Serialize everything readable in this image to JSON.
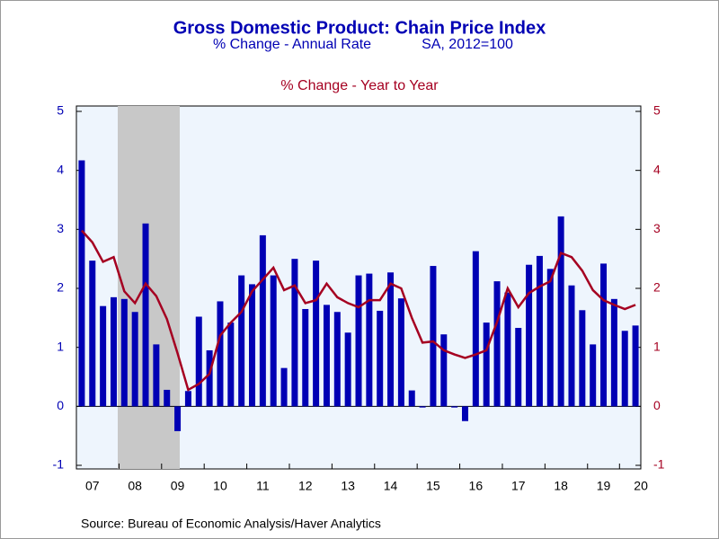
{
  "chart_data": {
    "type": "bar_line",
    "title": "Gross Domestic Product: Chain Price Index",
    "subtitle": "SA, 2012=100",
    "source": "Source:  Bureau of Economic Analysis/Haver Analytics",
    "categories": [
      null,
      "07",
      null,
      null,
      null,
      "08",
      null,
      null,
      null,
      "09",
      null,
      null,
      null,
      "10",
      null,
      null,
      null,
      "11",
      null,
      null,
      null,
      "12",
      null,
      null,
      null,
      "13",
      null,
      null,
      null,
      "14",
      null,
      null,
      null,
      "15",
      null,
      null,
      null,
      "16",
      null,
      null,
      null,
      "17",
      null,
      null,
      null,
      "18",
      null,
      null,
      null,
      "19",
      null,
      null,
      "20"
    ],
    "series": [
      {
        "name": "% Change - Annual Rate",
        "color": "#0000b4",
        "axis": "y",
        "values": [
          4.17,
          2.47,
          1.7,
          1.85,
          1.82,
          1.6,
          3.1,
          1.05,
          0.28,
          -0.42,
          0.26,
          1.52,
          0.95,
          1.78,
          1.42,
          2.22,
          2.07,
          2.9,
          2.22,
          0.65,
          2.5,
          1.65,
          2.47,
          1.72,
          1.6,
          1.25,
          2.22,
          2.25,
          1.62,
          2.27,
          1.83,
          0.27,
          -0.02,
          2.38,
          1.22,
          -0.02,
          -0.25,
          2.63,
          1.42,
          2.12,
          1.93,
          1.33,
          2.4,
          2.55,
          2.33,
          3.22,
          2.05,
          1.63,
          1.05,
          2.42,
          1.82,
          1.28,
          1.37
        ]
      },
      {
        "name": "% Change - Year to Year",
        "color": "#a50021",
        "axis": "y2",
        "values": [
          2.98,
          2.78,
          2.45,
          2.53,
          1.95,
          1.75,
          2.08,
          1.87,
          1.48,
          0.9,
          0.28,
          0.38,
          0.55,
          1.2,
          1.42,
          1.6,
          1.95,
          2.15,
          2.35,
          1.97,
          2.05,
          1.75,
          1.8,
          2.08,
          1.85,
          1.75,
          1.68,
          1.8,
          1.8,
          2.08,
          2.0,
          1.5,
          1.08,
          1.1,
          0.95,
          0.88,
          0.82,
          0.88,
          0.95,
          1.43,
          2.0,
          1.68,
          1.92,
          2.03,
          2.12,
          2.6,
          2.53,
          2.3,
          1.97,
          1.8,
          1.72,
          1.65,
          1.72
        ]
      }
    ],
    "ylim": [
      -1,
      5
    ],
    "yticks": [
      -1,
      0,
      1,
      2,
      3,
      4,
      5
    ],
    "y2lim": [
      -1,
      5
    ],
    "y2ticks": [
      -1,
      0,
      1,
      2,
      3,
      4,
      5
    ]
  }
}
